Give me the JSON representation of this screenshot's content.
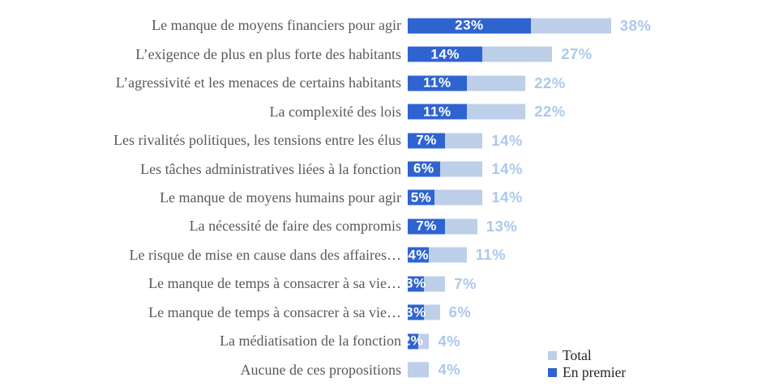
{
  "chart_data": {
    "type": "bar",
    "orientation": "horizontal",
    "title": "",
    "unit": "%",
    "xlim": [
      0,
      40
    ],
    "grid": false,
    "axes_visible": false,
    "legend_position": "bottom-right",
    "categories": [
      "Le manque de moyens financiers pour agir",
      "L’exigence de plus en plus forte des habitants",
      "L’agressivité et les menaces de certains habitants",
      "La complexité des lois",
      "Les rivalités politiques, les tensions entre les élus",
      "Les tâches administratives liées à la fonction",
      "Le manque de moyens humains pour agir",
      "La nécessité de faire des compromis",
      "Le risque de mise en cause dans des affaires…",
      "Le manque de temps à consacrer à sa vie…",
      "Le manque de temps à consacrer à sa vie…",
      "La médiatisation de la fonction",
      "Aucune de ces propositions"
    ],
    "series": [
      {
        "name": "Total",
        "color": "#BDCFE9",
        "values": [
          38,
          27,
          22,
          22,
          14,
          14,
          14,
          13,
          11,
          7,
          6,
          4,
          4
        ]
      },
      {
        "name": "En premier",
        "color": "#2F64D0",
        "values": [
          23,
          14,
          11,
          11,
          7,
          6,
          5,
          7,
          4,
          3,
          3,
          2,
          null
        ]
      }
    ]
  },
  "colors": {
    "background": "#FFFFFF",
    "category_text": "#595959",
    "total_value_label": "#ACC8EC",
    "en_premier_value_label": "#FFFFFF",
    "legend_text": "#262626"
  }
}
